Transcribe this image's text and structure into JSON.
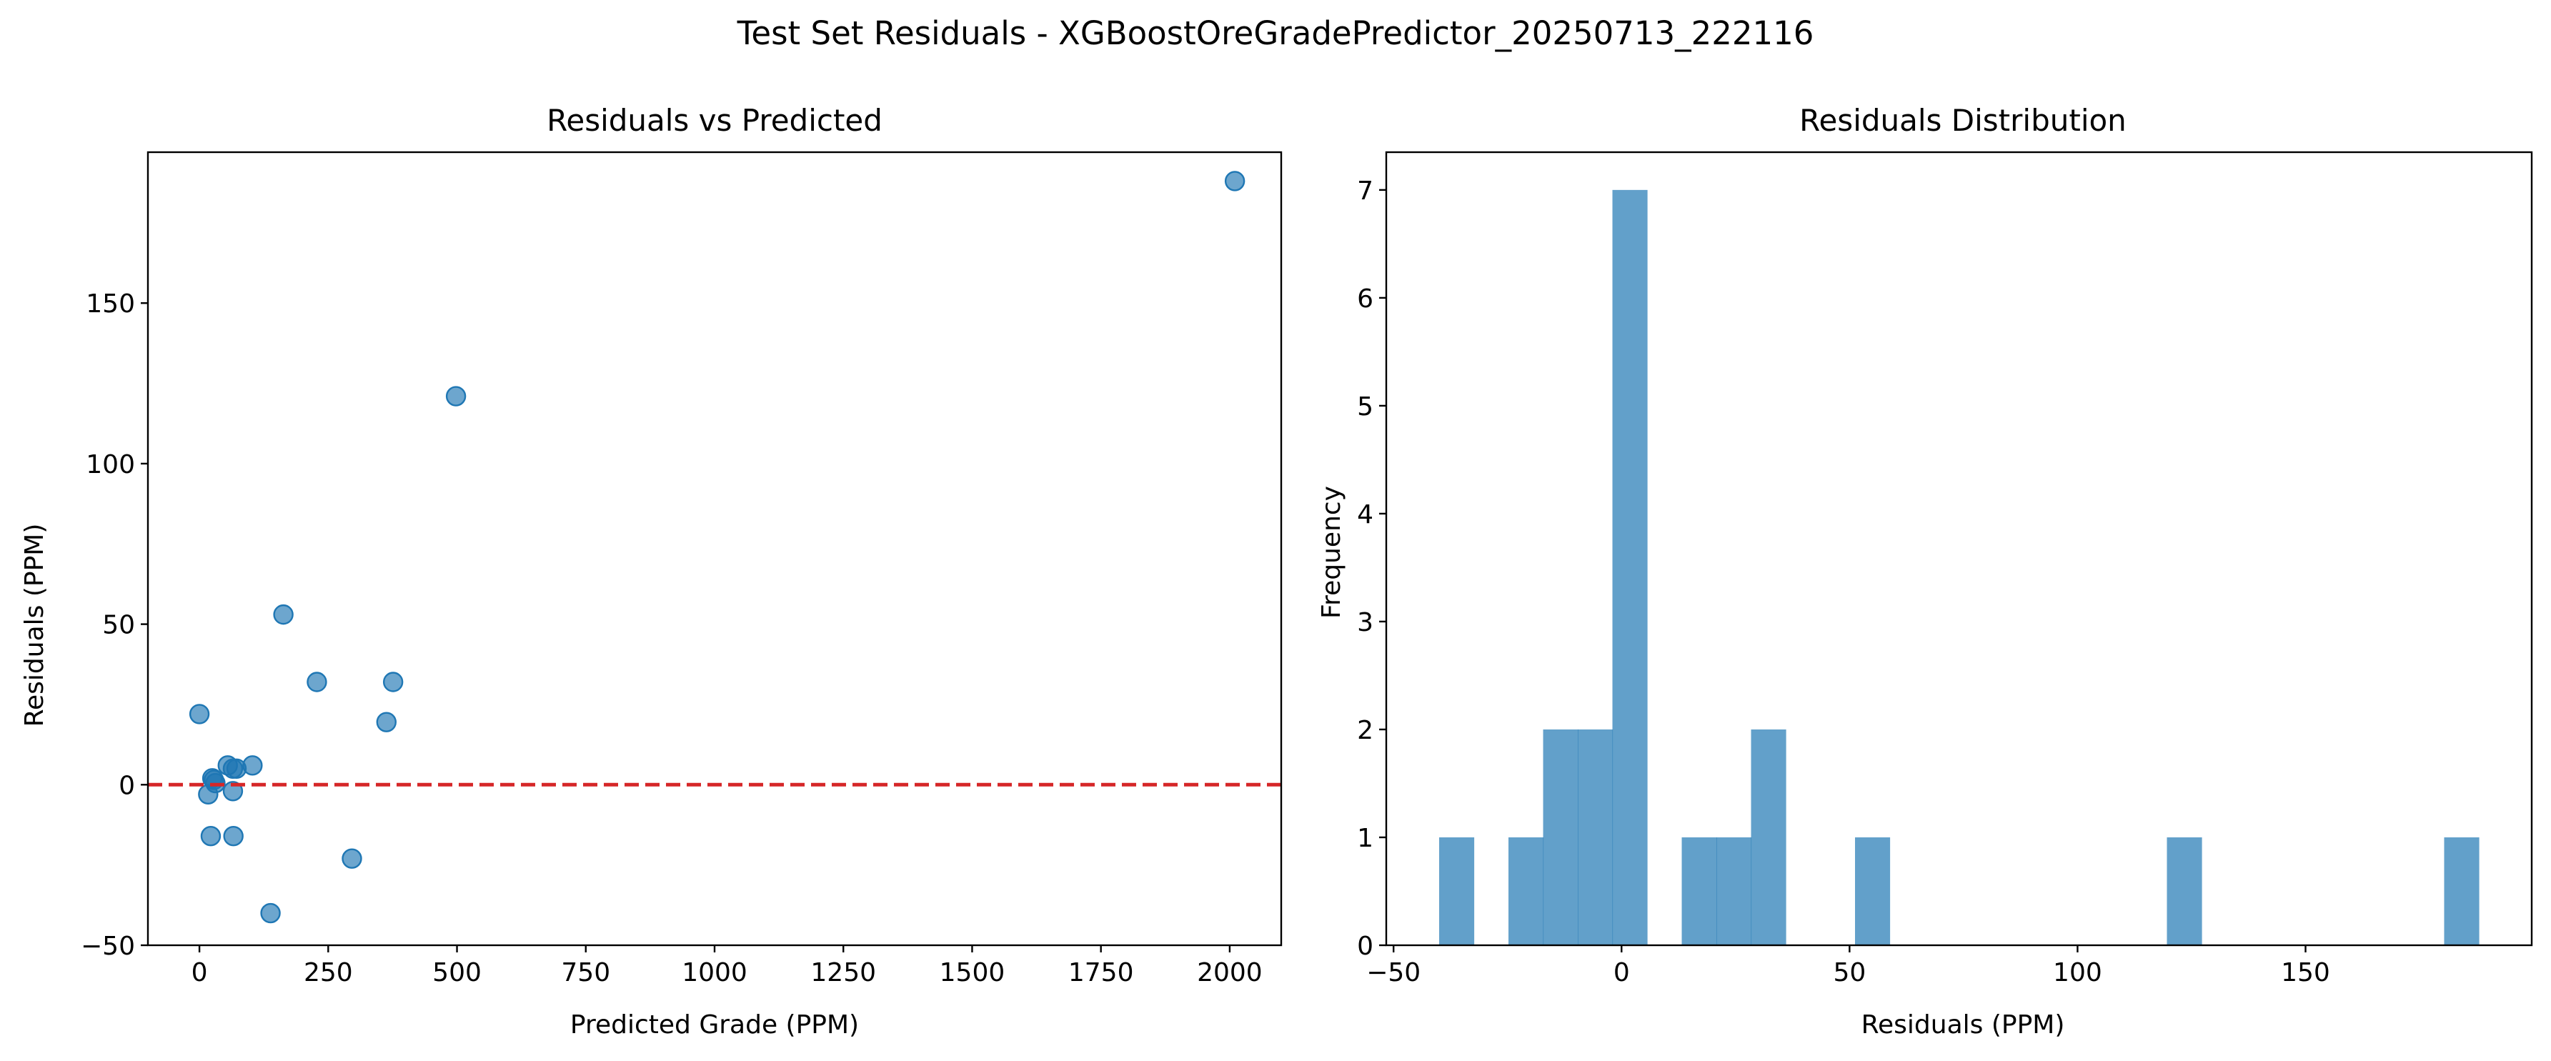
{
  "figure": {
    "suptitle": "Test Set Residuals - XGBoostOreGradePredictor_20250713_222116"
  },
  "colors": {
    "marker": "#1f77b4",
    "bar": "#1f77b4",
    "zero_line": "#d62728",
    "axis": "#000000"
  },
  "chart_data": [
    {
      "type": "scatter",
      "title": "Residuals vs Predicted",
      "xlabel": "Predicted Grade (PPM)",
      "ylabel": "Residuals (PPM)",
      "xlim": [
        -100,
        2100
      ],
      "ylim": [
        -50,
        197
      ],
      "xticks": [
        0,
        250,
        500,
        750,
        1000,
        1250,
        1500,
        1750,
        2000
      ],
      "xtick_labels": [
        "0",
        "250",
        "500",
        "750",
        "1000",
        "1250",
        "1500",
        "1750",
        "2000"
      ],
      "yticks": [
        -50,
        0,
        50,
        100,
        150
      ],
      "ytick_labels": [
        "−50",
        "0",
        "50",
        "100",
        "150"
      ],
      "grid": false,
      "reference_line": {
        "y": 0,
        "style": "dashed"
      },
      "points": [
        {
          "x": 2010,
          "y": 188
        },
        {
          "x": 498,
          "y": 121
        },
        {
          "x": 163,
          "y": 53
        },
        {
          "x": 228,
          "y": 32
        },
        {
          "x": 376,
          "y": 32
        },
        {
          "x": 0,
          "y": 22
        },
        {
          "x": 363,
          "y": 19.5
        },
        {
          "x": 103,
          "y": 6
        },
        {
          "x": 55,
          "y": 6
        },
        {
          "x": 72,
          "y": 5
        },
        {
          "x": 65,
          "y": 5
        },
        {
          "x": 28,
          "y": 1.5
        },
        {
          "x": 25,
          "y": 2
        },
        {
          "x": 31,
          "y": 0.5
        },
        {
          "x": 65,
          "y": -2
        },
        {
          "x": 17,
          "y": -3
        },
        {
          "x": 22,
          "y": -16
        },
        {
          "x": 66,
          "y": -16
        },
        {
          "x": 296,
          "y": -23
        },
        {
          "x": 138,
          "y": -40
        }
      ]
    },
    {
      "type": "bar",
      "title": "Residuals Distribution",
      "xlabel": "Residuals (PPM)",
      "ylabel": "Frequency",
      "xlim": [
        -51.6,
        199.6
      ],
      "ylim": [
        0,
        7.35
      ],
      "xticks": [
        -50,
        0,
        50,
        100,
        150
      ],
      "xtick_labels": [
        "−50",
        "0",
        "50",
        "100",
        "150"
      ],
      "yticks": [
        0,
        1,
        2,
        3,
        4,
        5,
        6,
        7
      ],
      "ytick_labels": [
        "0",
        "1",
        "2",
        "3",
        "4",
        "5",
        "6",
        "7"
      ],
      "grid": false,
      "bin_edges": [
        -40.0,
        -32.4,
        -24.8,
        -17.2,
        -9.6,
        -2.0,
        5.6,
        13.2,
        20.8,
        28.4,
        36.0,
        43.6,
        51.2,
        58.8,
        66.4,
        74.0,
        81.6,
        89.2,
        96.8,
        104.4,
        112.0,
        119.6,
        127.2,
        134.8,
        142.4,
        150.0,
        157.6,
        165.2,
        172.8,
        180.4,
        188.0
      ],
      "counts": [
        1,
        0,
        1,
        2,
        2,
        7,
        0,
        1,
        1,
        2,
        0,
        0,
        1,
        0,
        0,
        0,
        0,
        0,
        0,
        0,
        0,
        1,
        0,
        0,
        0,
        0,
        0,
        0,
        0,
        1
      ]
    }
  ]
}
